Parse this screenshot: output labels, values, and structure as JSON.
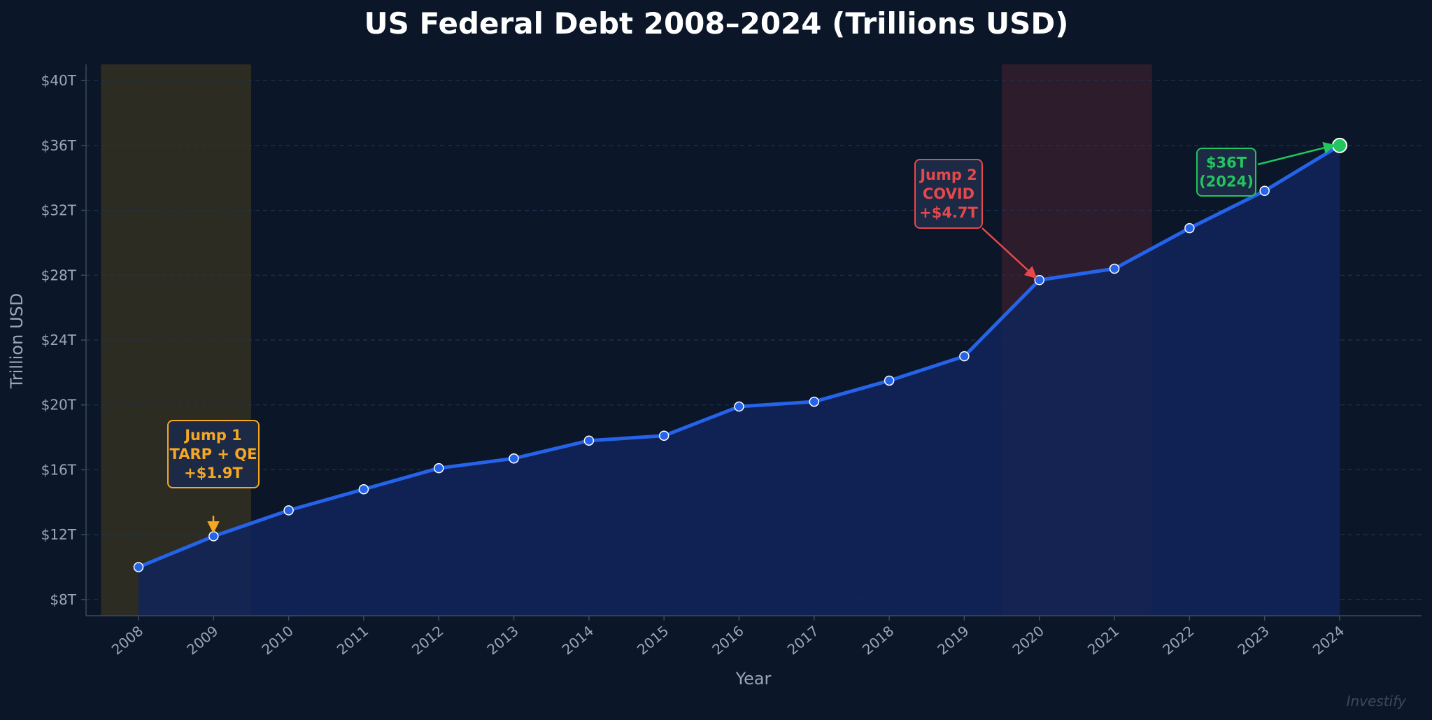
{
  "chart_data": {
    "type": "line",
    "title": "US Federal Debt 2008–2024 (Trillions USD)",
    "xlabel": "Year",
    "ylabel": "Trillion USD",
    "x": [
      "2008",
      "2009",
      "2010",
      "2011",
      "2012",
      "2013",
      "2014",
      "2015",
      "2016",
      "2017",
      "2018",
      "2019",
      "2020",
      "2021",
      "2022",
      "2023",
      "2024"
    ],
    "series": [
      {
        "values": [
          10.0,
          11.9,
          13.5,
          14.8,
          16.1,
          16.7,
          17.8,
          18.1,
          19.9,
          20.2,
          21.5,
          23.0,
          27.7,
          28.4,
          30.9,
          33.2,
          36.0
        ]
      }
    ],
    "ylim": [
      7,
      41
    ],
    "yticks": [
      8,
      12,
      16,
      20,
      24,
      28,
      32,
      36,
      40
    ],
    "ytick_labels": [
      "$8T",
      "$12T",
      "$16T",
      "$20T",
      "$24T",
      "$28T",
      "$32T",
      "$36T",
      "$40T"
    ],
    "grid": true,
    "shaded_regions": [
      {
        "from": 2007.5,
        "to": 2009.5,
        "color": "#3a3420"
      },
      {
        "from": 2019.5,
        "to": 2021.5,
        "color": "#3a1f2c"
      }
    ],
    "annotations": [
      {
        "lines": [
          "Jump 1",
          "TARP + QE",
          "+$1.9T"
        ],
        "target_x": 2009,
        "target_y": 11.9,
        "color": "#f5a623"
      },
      {
        "lines": [
          "Jump 2",
          "COVID",
          "+$4.7T"
        ],
        "target_x": 2020,
        "target_y": 27.7,
        "color": "#e5484d"
      },
      {
        "lines": [
          "$36T",
          "(2024)"
        ],
        "target_x": 2024,
        "target_y": 36.0,
        "color": "#22c55e"
      }
    ],
    "watermark": "Investify",
    "colors": {
      "line": "#2563eb",
      "area": "#12245a",
      "point_fill": "#2563eb",
      "point_stroke": "#ffffff",
      "highlight_point": "#22c55e",
      "grid": "#1e3350",
      "axis": "#3a4a60"
    }
  }
}
